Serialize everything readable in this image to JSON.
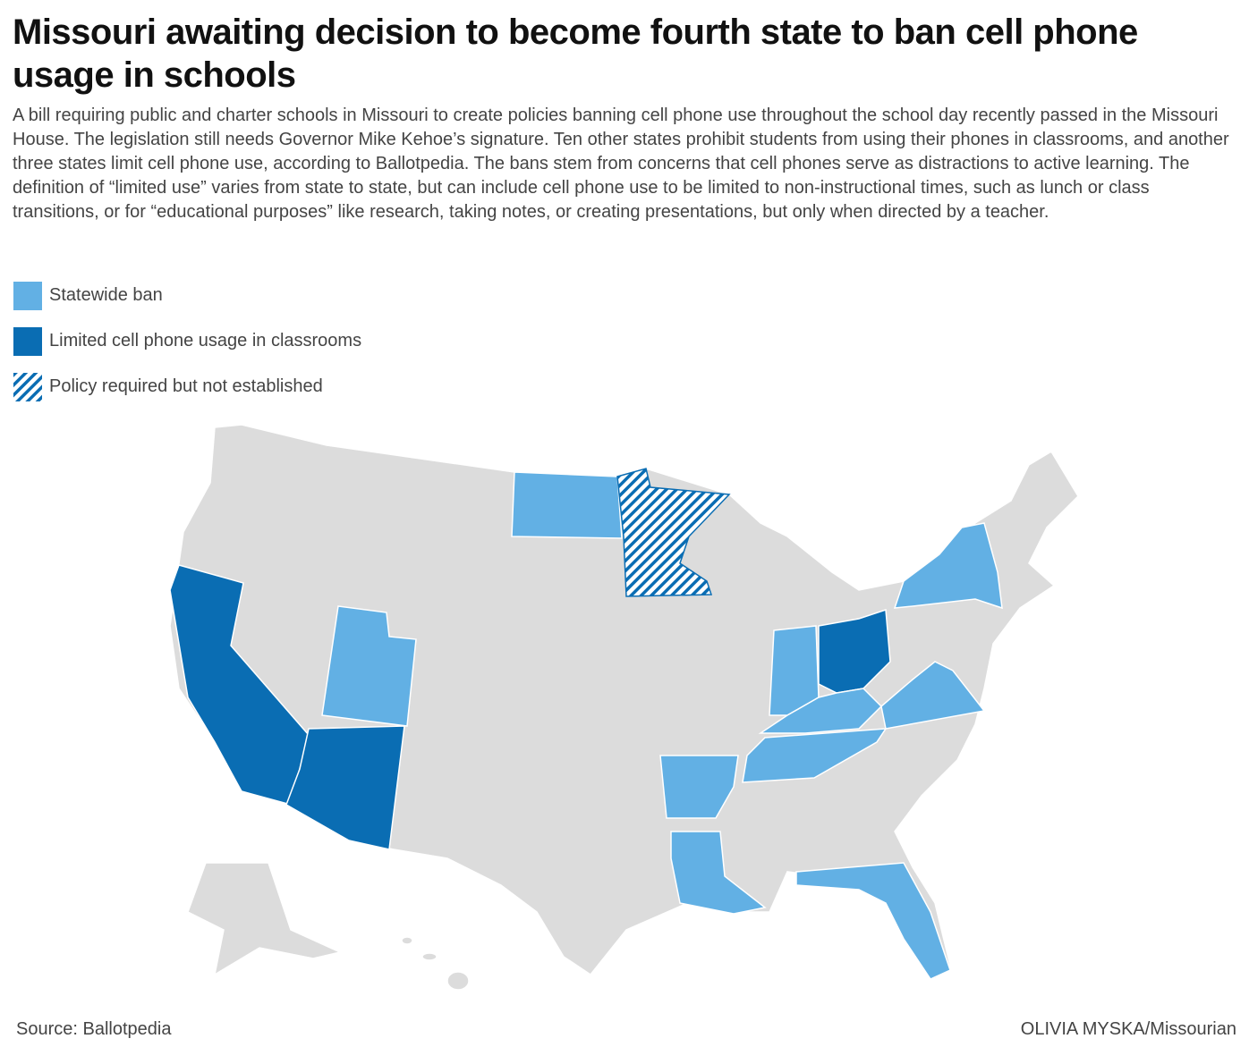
{
  "header": {
    "title": "Missouri awaiting decision to become fourth state to ban cell phone usage in schools",
    "description": "A bill requiring public and charter schools in Missouri to create policies banning cell phone use throughout the school day recently passed in the Missouri House. The legislation still needs Governor Mike Kehoe’s signature. Ten other states prohibit students from using their phones in classrooms, and another three states limit cell phone use, according to Ballotpedia. The bans stem from concerns that cell phones serve as distractions to active learning. The definition of “limited use” varies from state to state, but can include cell phone use to be limited to non-instructional times, such as lunch or class transitions, or for “educational purposes” like research, taking notes, or creating presentations, but only when directed by a teacher."
  },
  "legend": {
    "items": [
      {
        "label": "Statewide ban",
        "color": "#62b0e4"
      },
      {
        "label": "Limited cell phone usage in classrooms",
        "color": "#0a6db3"
      },
      {
        "label": "Policy required but not established",
        "color": "#0a6db3",
        "pattern": "hatch"
      }
    ]
  },
  "footer": {
    "source": "Source: Ballotpedia",
    "credit": "OLIVIA MYSKA/Missourian"
  }
}
